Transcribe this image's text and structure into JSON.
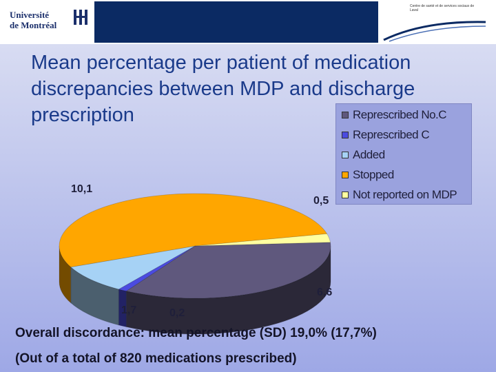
{
  "header": {
    "logo_left_text_line1": "Université",
    "logo_left_text_line2": "de Montréal",
    "logo_right_text": "Centre de santé et de services sociaux de Laval"
  },
  "slide": {
    "title": "Mean percentage per patient of medication discrepancies between MDP and discharge prescription",
    "footer_line1": "Overall discordance: mean percentage (SD) 19,0% (17,7%)",
    "footer_line2": "(Out of a total of 820 medications prescribed)"
  },
  "legend": [
    {
      "label": "Represcribed No.C",
      "color": "#5f587d"
    },
    {
      "label": "Represcribed C",
      "color": "#4b4be0"
    },
    {
      "label": "Added",
      "color": "#a6d2f5"
    },
    {
      "label": "Stopped",
      "color": "#ffa600"
    },
    {
      "label": "Not reported on MDP",
      "color": "#ffffa0"
    }
  ],
  "chart_data": {
    "type": "pie",
    "title": "Mean percentage per patient of medication discrepancies between MDP and discharge prescription",
    "categories": [
      "Represcribed No.C",
      "Represcribed C",
      "Added",
      "Stopped",
      "Not reported on MDP"
    ],
    "values": [
      6.6,
      0.2,
      1.7,
      10.1,
      0.5
    ],
    "data_labels": [
      "6,6",
      "0,2",
      "1,7",
      "10,1",
      "0,5"
    ],
    "colors": [
      "#5f587d",
      "#4b4be0",
      "#a6d2f5",
      "#ffa600",
      "#ffffa0"
    ],
    "legend_position": "right",
    "style": "3d"
  }
}
